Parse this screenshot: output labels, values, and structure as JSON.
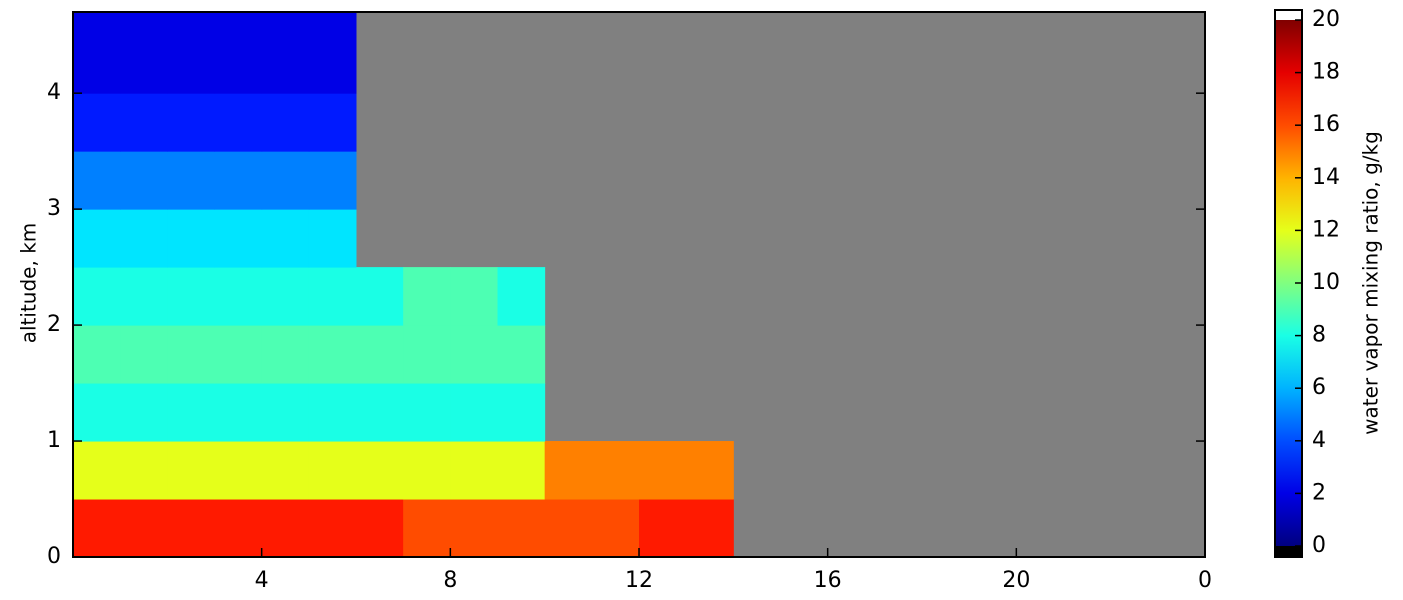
{
  "chart_data": {
    "type": "heatmap",
    "y_label": "altitude, km",
    "colorbar_label": "water vapor mixing ratio, g/kg",
    "colormap": "jet",
    "missing_color": "#808080",
    "x_bins": [
      0,
      1,
      2,
      3,
      4,
      5,
      6,
      7,
      8,
      9,
      10,
      11,
      12,
      13,
      14
    ],
    "y_bins": [
      0,
      0.5,
      1,
      1.5,
      2,
      2.5,
      3,
      3.5,
      4,
      4.5,
      4.7
    ],
    "values": [
      [
        17,
        17,
        17,
        17,
        17,
        17,
        17,
        16,
        16,
        16,
        16,
        16,
        17,
        17
      ],
      [
        12,
        12,
        12,
        12,
        12,
        12,
        12,
        12,
        12,
        12,
        15,
        15,
        15,
        15
      ],
      [
        8,
        8,
        8,
        8,
        8,
        8,
        8,
        8,
        8,
        8,
        null,
        null,
        null,
        null
      ],
      [
        9,
        9,
        9,
        9,
        9,
        9,
        9,
        9,
        9,
        9,
        null,
        null,
        null,
        null
      ],
      [
        8,
        8,
        8,
        8,
        8,
        8,
        8,
        9,
        9,
        8,
        null,
        null,
        null,
        null
      ],
      [
        7,
        7,
        7,
        7,
        7,
        7,
        null,
        null,
        null,
        null,
        null,
        null,
        null,
        null
      ],
      [
        5,
        5,
        5,
        5,
        5,
        5,
        null,
        null,
        null,
        null,
        null,
        null,
        null,
        null
      ],
      [
        3,
        3,
        3,
        3,
        3,
        3,
        null,
        null,
        null,
        null,
        null,
        null,
        null,
        null
      ],
      [
        2,
        2,
        2,
        2,
        2,
        2,
        null,
        null,
        null,
        null,
        null,
        null,
        null,
        null
      ],
      [
        2,
        2,
        2,
        2,
        2,
        2,
        null,
        null,
        null,
        null,
        null,
        null,
        null,
        null
      ]
    ],
    "xlim": [
      0,
      24
    ],
    "ylim": [
      0,
      4.7
    ],
    "xticks": [
      4,
      8,
      12,
      16,
      20,
      {
        "value": 24,
        "label": "0"
      }
    ],
    "yticks": [
      0,
      1,
      2,
      3,
      4
    ],
    "clim": [
      0,
      20
    ],
    "cticks": [
      0,
      2,
      4,
      6,
      8,
      10,
      12,
      14,
      16,
      18,
      20
    ]
  }
}
